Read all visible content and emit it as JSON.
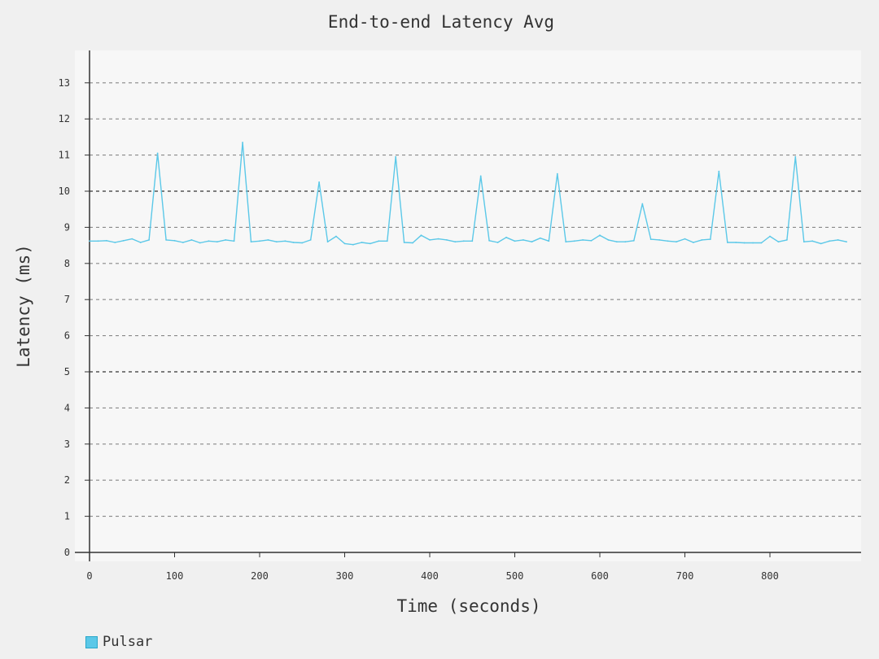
{
  "chart_data": {
    "type": "line",
    "title": "End-to-end Latency Avg",
    "xlabel": "Time (seconds)",
    "ylabel": "Latency (ms)",
    "xlim": [
      0,
      910
    ],
    "ylim": [
      0,
      13.9
    ],
    "x_ticks": [
      0,
      100,
      200,
      300,
      400,
      500,
      600,
      700,
      800
    ],
    "y_ticks": [
      0,
      1,
      2,
      3,
      4,
      5,
      6,
      7,
      8,
      9,
      10,
      11,
      12,
      13
    ],
    "grid": true,
    "legend_position": "bottom-left",
    "series": [
      {
        "name": "Pulsar",
        "color": "#5bc8e8",
        "x": [
          0,
          10,
          20,
          30,
          40,
          50,
          60,
          70,
          80,
          90,
          100,
          110,
          120,
          130,
          140,
          150,
          160,
          170,
          180,
          190,
          200,
          210,
          220,
          230,
          240,
          250,
          260,
          270,
          280,
          290,
          300,
          310,
          320,
          330,
          340,
          350,
          360,
          370,
          380,
          390,
          400,
          410,
          420,
          430,
          440,
          450,
          460,
          470,
          480,
          490,
          500,
          510,
          520,
          530,
          540,
          550,
          560,
          570,
          580,
          590,
          600,
          610,
          620,
          630,
          640,
          650,
          660,
          670,
          680,
          690,
          700,
          710,
          720,
          730,
          740,
          750,
          760,
          770,
          780,
          790,
          800,
          810,
          820,
          830,
          840,
          850,
          860,
          870,
          880,
          890
        ],
        "values": [
          8.62,
          8.62,
          8.63,
          8.58,
          8.63,
          8.68,
          8.58,
          8.65,
          11.05,
          8.65,
          8.63,
          8.58,
          8.65,
          8.57,
          8.62,
          8.6,
          8.65,
          8.62,
          11.35,
          8.6,
          8.62,
          8.65,
          8.6,
          8.62,
          8.58,
          8.57,
          8.65,
          10.25,
          8.6,
          8.75,
          8.55,
          8.52,
          8.58,
          8.55,
          8.62,
          8.62,
          10.95,
          8.58,
          8.57,
          8.78,
          8.65,
          8.68,
          8.65,
          8.6,
          8.62,
          8.62,
          10.42,
          8.63,
          8.58,
          8.72,
          8.62,
          8.65,
          8.6,
          8.7,
          8.62,
          10.48,
          8.6,
          8.62,
          8.65,
          8.63,
          8.78,
          8.65,
          8.6,
          8.6,
          8.63,
          9.65,
          8.67,
          8.65,
          8.62,
          8.6,
          8.68,
          8.58,
          8.65,
          8.67,
          10.55,
          8.58,
          8.58,
          8.57,
          8.57,
          8.57,
          8.75,
          8.6,
          8.65,
          10.95,
          8.6,
          8.62,
          8.55,
          8.62,
          8.65,
          8.6
        ]
      }
    ]
  }
}
